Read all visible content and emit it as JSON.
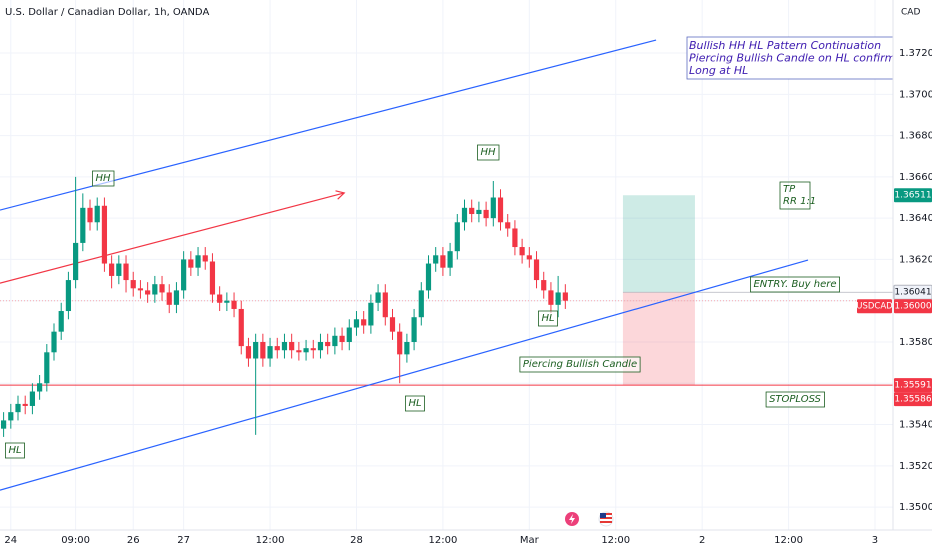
{
  "chart_data": {
    "type": "candlestick",
    "title": "U.S. Dollar / Canadian Dollar, 1h, OANDA",
    "currency": "CAD",
    "symbol": "USDCAD",
    "up_color": "#089981",
    "down_color": "#f23645",
    "grid": true,
    "xlim": [
      -0.5,
      123.5
    ],
    "xticks": [
      {
        "value": 1,
        "label": "24"
      },
      {
        "value": 10,
        "label": "09:00"
      },
      {
        "value": 18,
        "label": "26"
      },
      {
        "value": 25,
        "label": "27"
      },
      {
        "value": 37,
        "label": "12:00"
      },
      {
        "value": 49,
        "label": "28"
      },
      {
        "value": 61,
        "label": "12:00"
      },
      {
        "value": 73,
        "label": "Mar"
      },
      {
        "value": 85,
        "label": "12:00"
      },
      {
        "value": 97,
        "label": "2"
      },
      {
        "value": 109,
        "label": "12:00"
      },
      {
        "value": 121,
        "label": "3"
      }
    ],
    "ylim": [
      1.34889,
      1.37457
    ],
    "yticks": [
      {
        "value": 1.35,
        "label": "1.35000"
      },
      {
        "value": 1.352,
        "label": "1.35200"
      },
      {
        "value": 1.354,
        "label": "1.35400"
      },
      {
        "value": 1.356,
        "label": "1.35600"
      },
      {
        "value": 1.358,
        "label": "1.35800"
      },
      {
        "value": 1.36,
        "label": "1.36000"
      },
      {
        "value": 1.362,
        "label": "1.36200"
      },
      {
        "value": 1.364,
        "label": "1.36400"
      },
      {
        "value": 1.366,
        "label": "1.36600"
      },
      {
        "value": 1.368,
        "label": "1.36800"
      },
      {
        "value": 1.37,
        "label": "1.37000"
      },
      {
        "value": 1.372,
        "label": "1.37200"
      }
    ],
    "open": [
      1.3538,
      1.3542,
      1.3546,
      1.355,
      1.3549,
      1.3556,
      1.356,
      1.3575,
      1.3585,
      1.3595,
      1.361,
      1.3628,
      1.3645,
      1.3638,
      1.3646,
      1.3618,
      1.3612,
      1.3618,
      1.361,
      1.3606,
      1.3605,
      1.3603,
      1.3608,
      1.3604,
      1.3598,
      1.3605,
      1.362,
      1.3616,
      1.3622,
      1.3619,
      1.3603,
      1.3599,
      1.36,
      1.3596,
      1.3578,
      1.3572,
      1.358,
      1.3572,
      1.3578,
      1.3576,
      1.358,
      1.3576,
      1.3575,
      1.3577,
      1.3576,
      1.358,
      1.3578,
      1.3583,
      1.358,
      1.3587,
      1.3591,
      1.3588,
      1.3599,
      1.3604,
      1.3592,
      1.3585,
      1.3574,
      1.358,
      1.3592,
      1.3605,
      1.3618,
      1.3622,
      1.3616,
      1.3624,
      1.3638,
      1.3645,
      1.3642,
      1.3644,
      1.364,
      1.365,
      1.3638,
      1.3635,
      1.3626,
      1.3622,
      1.362,
      1.361,
      1.3605,
      1.3598,
      1.3604
    ],
    "high": [
      1.3546,
      1.355,
      1.3554,
      1.3554,
      1.356,
      1.3564,
      1.3579,
      1.3589,
      1.3599,
      1.3614,
      1.366,
      1.3652,
      1.3649,
      1.365,
      1.365,
      1.3622,
      1.3622,
      1.3622,
      1.3614,
      1.361,
      1.3609,
      1.3612,
      1.3612,
      1.3608,
      1.3609,
      1.3624,
      1.3624,
      1.3626,
      1.3626,
      1.3623,
      1.3607,
      1.3604,
      1.3604,
      1.36,
      1.3582,
      1.3584,
      1.3584,
      1.3582,
      1.3582,
      1.3584,
      1.3584,
      1.358,
      1.3581,
      1.3581,
      1.3584,
      1.3584,
      1.3587,
      1.3587,
      1.3591,
      1.3595,
      1.3595,
      1.3603,
      1.3608,
      1.3608,
      1.3596,
      1.3589,
      1.3584,
      1.3596,
      1.3609,
      1.3622,
      1.3626,
      1.3626,
      1.3628,
      1.3642,
      1.3649,
      1.3649,
      1.3648,
      1.3648,
      1.3658,
      1.3654,
      1.3642,
      1.3639,
      1.363,
      1.3626,
      1.3624,
      1.3614,
      1.3609,
      1.3612,
      1.3608
    ],
    "low": [
      1.3534,
      1.3538,
      1.3542,
      1.3545,
      1.3545,
      1.3552,
      1.3556,
      1.3571,
      1.3581,
      1.3591,
      1.3606,
      1.3624,
      1.3634,
      1.3634,
      1.3614,
      1.3606,
      1.3608,
      1.3604,
      1.3602,
      1.3601,
      1.3599,
      1.3599,
      1.36,
      1.3594,
      1.3594,
      1.3601,
      1.3612,
      1.3612,
      1.3615,
      1.3599,
      1.3595,
      1.3595,
      1.3592,
      1.3574,
      1.3568,
      1.3535,
      1.3568,
      1.3568,
      1.3572,
      1.3572,
      1.3572,
      1.3571,
      1.3571,
      1.3572,
      1.3572,
      1.3574,
      1.3574,
      1.3576,
      1.3576,
      1.3583,
      1.3584,
      1.3584,
      1.3595,
      1.3588,
      1.3581,
      1.356,
      1.357,
      1.3576,
      1.3588,
      1.3601,
      1.3614,
      1.3612,
      1.3612,
      1.362,
      1.3634,
      1.3638,
      1.3638,
      1.3636,
      1.3636,
      1.3634,
      1.3631,
      1.3622,
      1.3618,
      1.3616,
      1.3606,
      1.3601,
      1.3594,
      1.3592,
      1.3596
    ],
    "close": [
      1.3542,
      1.3546,
      1.355,
      1.3549,
      1.3556,
      1.356,
      1.3575,
      1.3585,
      1.3595,
      1.361,
      1.3628,
      1.3645,
      1.3638,
      1.3646,
      1.3618,
      1.3612,
      1.3618,
      1.361,
      1.3606,
      1.3605,
      1.3603,
      1.3608,
      1.3604,
      1.3598,
      1.3605,
      1.362,
      1.3616,
      1.3622,
      1.3619,
      1.3603,
      1.3599,
      1.36,
      1.3596,
      1.3578,
      1.3572,
      1.358,
      1.3572,
      1.3578,
      1.3576,
      1.358,
      1.3576,
      1.3575,
      1.3577,
      1.3576,
      1.358,
      1.3578,
      1.3583,
      1.358,
      1.3587,
      1.3591,
      1.3588,
      1.3599,
      1.3604,
      1.3592,
      1.3585,
      1.3574,
      1.358,
      1.3592,
      1.3605,
      1.3618,
      1.3622,
      1.3616,
      1.3624,
      1.3638,
      1.3645,
      1.3642,
      1.3644,
      1.364,
      1.365,
      1.3638,
      1.3635,
      1.3626,
      1.3622,
      1.362,
      1.361,
      1.3605,
      1.3598,
      1.3604,
      1.36
    ],
    "lines": [
      {
        "x": [
          -0.5,
          90.6
        ],
        "y": [
          1.36439,
          1.37263
        ],
        "color": "#2962ff"
      },
      {
        "x": [
          -0.5,
          111.7
        ],
        "y": [
          1.35082,
          1.36197
        ],
        "color": "#2962ff"
      },
      {
        "x": [
          -0.5,
          47.3
        ],
        "y": [
          1.36085,
          1.36522
        ],
        "color": "#f23645"
      }
    ],
    "position": {
      "x": [
        86,
        96
      ]
    },
    "price_labels": [
      {
        "value": 1.36511,
        "label": "1.36511",
        "color": "#089981"
      },
      {
        "value": 1.36041,
        "label": "1.36041",
        "color": "#e0e3eb"
      },
      {
        "value": 1.36,
        "label": "1.36000",
        "color": "#f23645"
      },
      {
        "value": 1.35591,
        "label": "1.35591",
        "color": "#f23645"
      },
      {
        "value": 1.35586,
        "label": "1.35586",
        "color": "#f23645"
      }
    ],
    "annotations": [
      "HH",
      "HH",
      "HL",
      "HL",
      "HL",
      "Piercing Bullish Candle",
      "ENTRY. Buy here",
      "STOPLOSS"
    ],
    "tp_note": [
      "TP",
      "RR 1:1"
    ],
    "note": [
      "Bullish HH HL Pattern Continuation",
      "Piercing Bullish Candle on HL confirmed Pa",
      "Long at HL"
    ]
  }
}
